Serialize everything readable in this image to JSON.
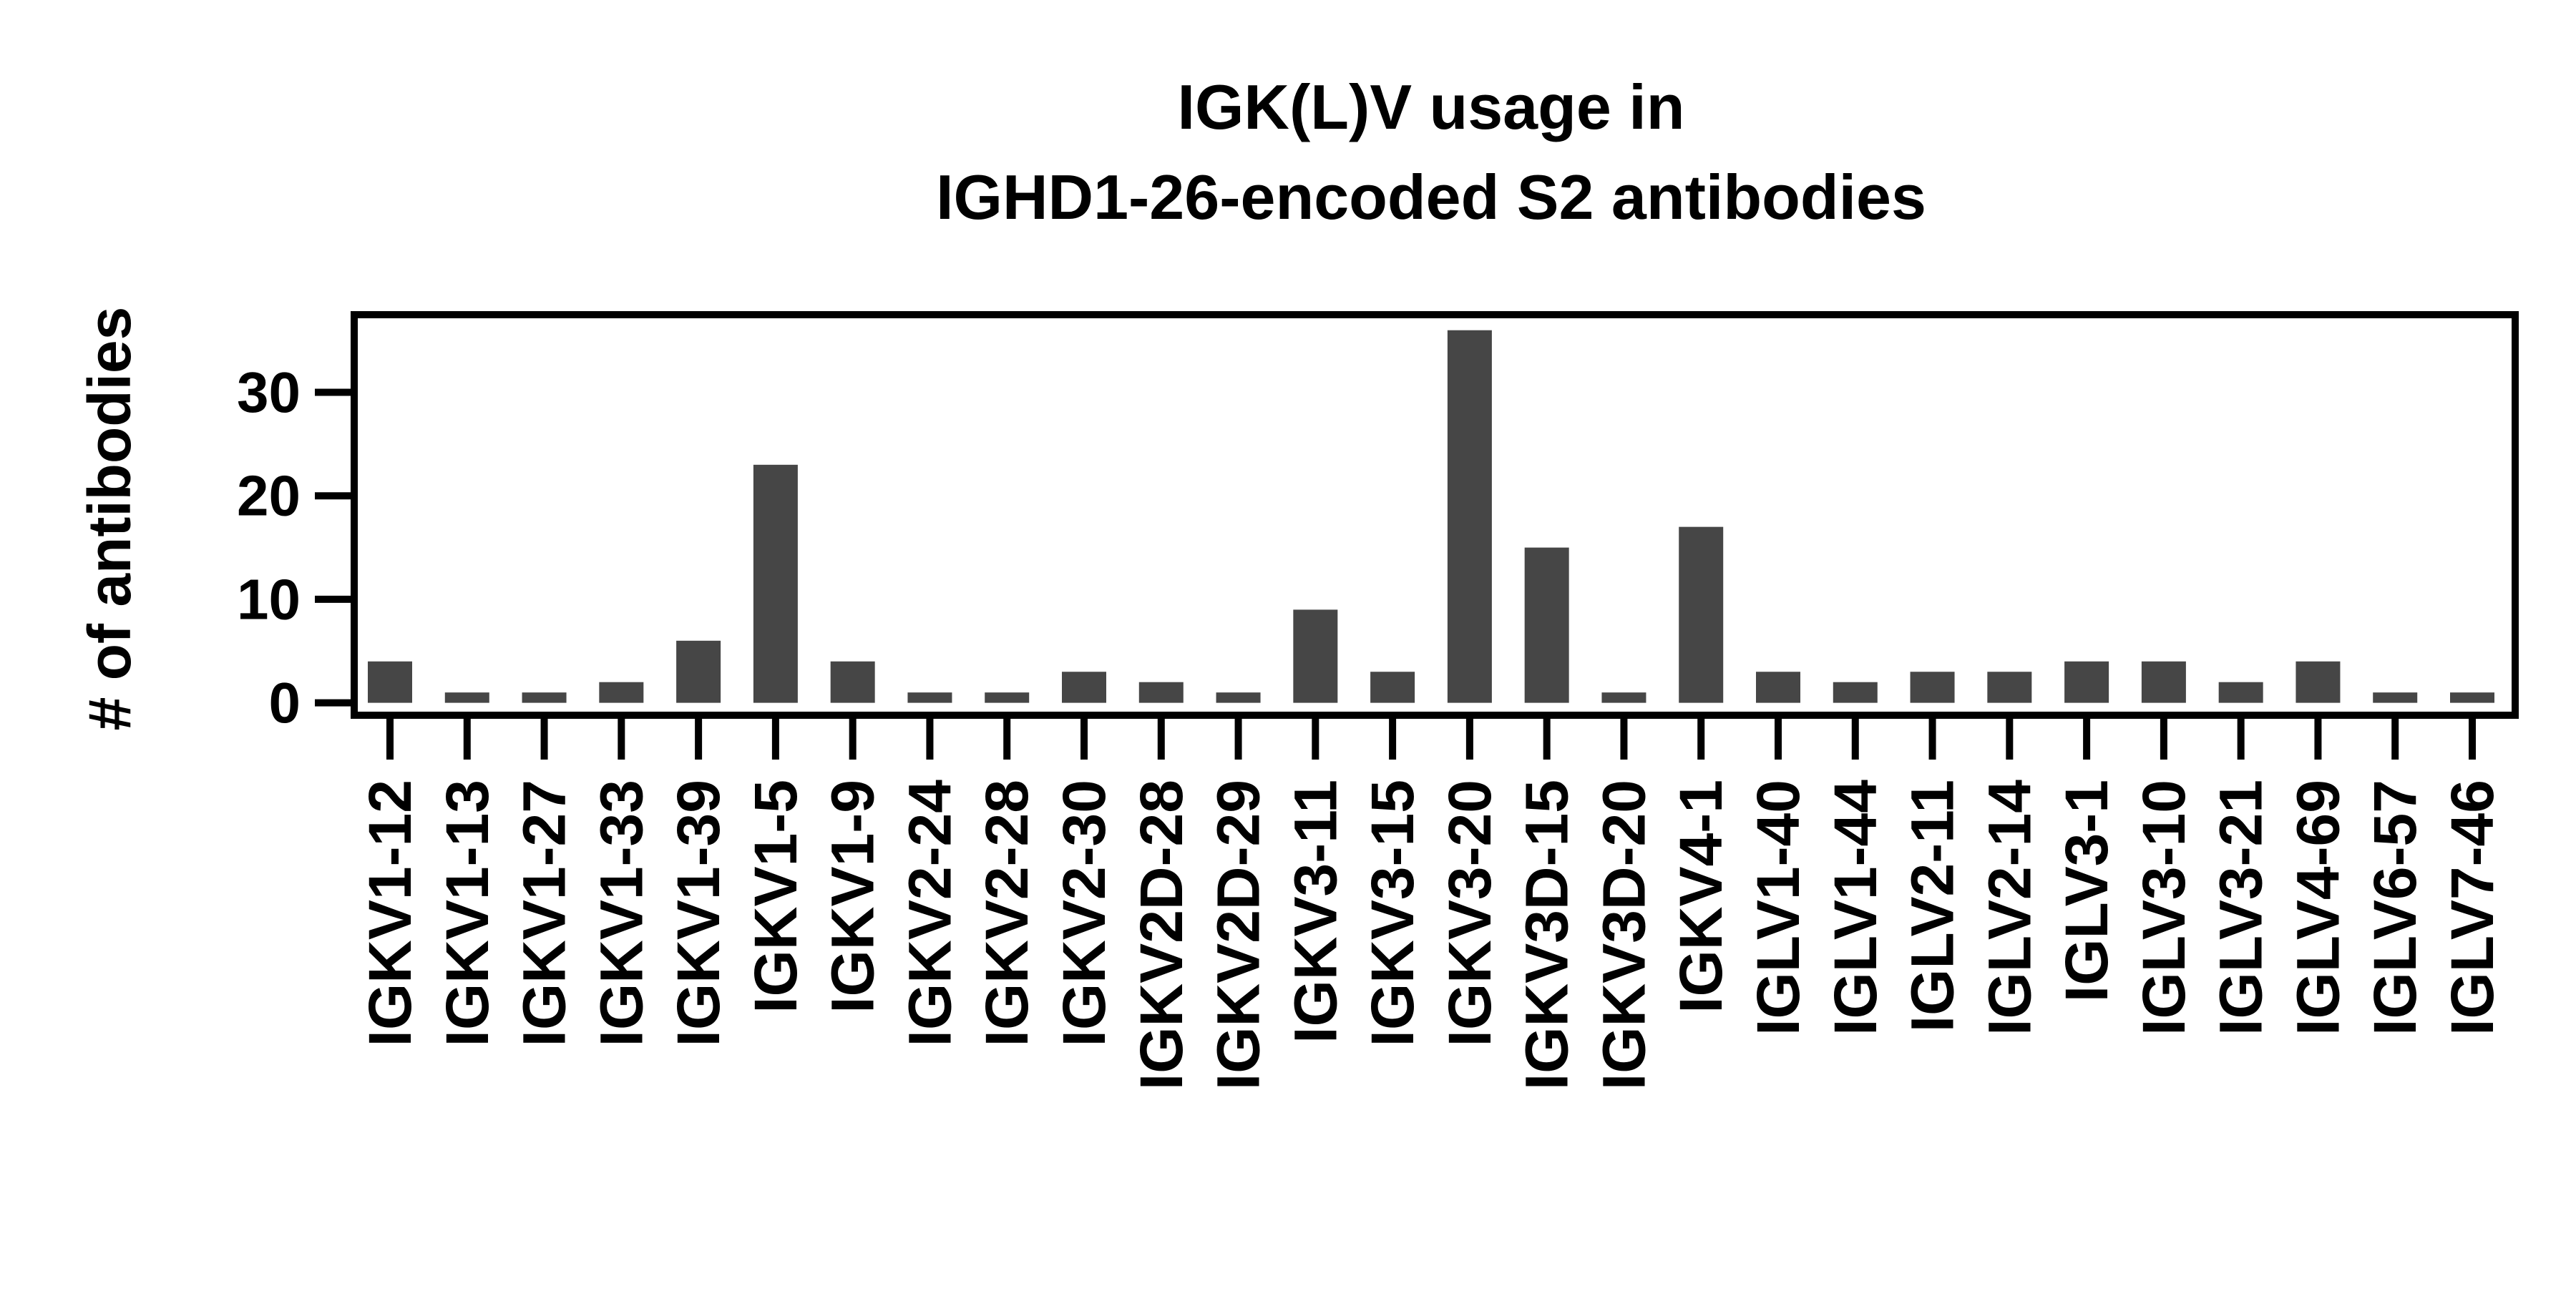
{
  "chart_data": {
    "type": "bar",
    "title_lines": [
      "IGK(L)V usage in",
      "IGHD1-26-encoded S2 antibodies"
    ],
    "xlabel": "",
    "ylabel": "# of antibodies",
    "categories": [
      "IGKV1-12",
      "IGKV1-13",
      "IGKV1-27",
      "IGKV1-33",
      "IGKV1-39",
      "IGKV1-5",
      "IGKV1-9",
      "IGKV2-24",
      "IGKV2-28",
      "IGKV2-30",
      "IGKV2D-28",
      "IGKV2D-29",
      "IGKV3-11",
      "IGKV3-15",
      "IGKV3-20",
      "IGKV3D-15",
      "IGKV3D-20",
      "IGKV4-1",
      "IGLV1-40",
      "IGLV1-44",
      "IGLV2-11",
      "IGLV2-14",
      "IGLV3-1",
      "IGLV3-10",
      "IGLV3-21",
      "IGLV4-69",
      "IGLV6-57",
      "IGLV7-46"
    ],
    "values": [
      4,
      1,
      1,
      2,
      6,
      23,
      4,
      1,
      1,
      3,
      2,
      1,
      9,
      3,
      36,
      15,
      1,
      17,
      3,
      2,
      3,
      3,
      4,
      4,
      2,
      4,
      1,
      1
    ],
    "yticks": [
      0,
      10,
      20,
      30
    ],
    "ylim": [
      -1.2,
      37.5
    ],
    "grid": false,
    "legend": "none",
    "bar_color": "#464646"
  }
}
